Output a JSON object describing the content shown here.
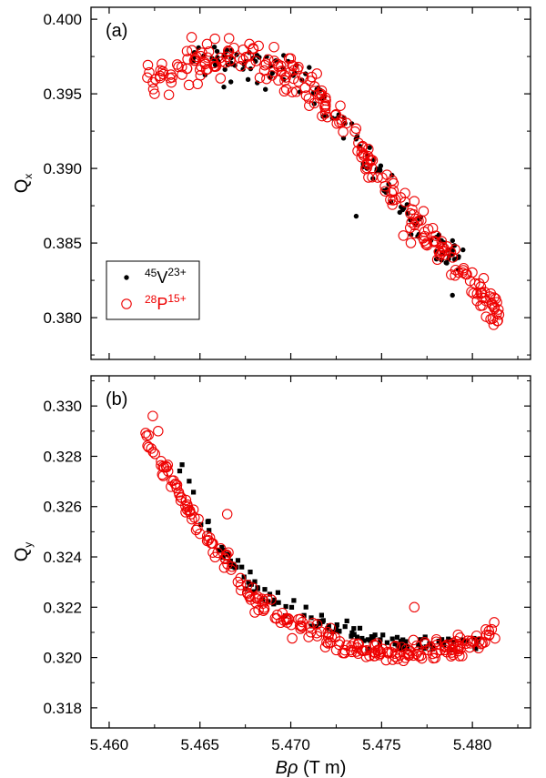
{
  "chart_data": [
    {
      "type": "scatter",
      "panel_label": "(a)",
      "ylabel": {
        "main": "Q",
        "sub": "x"
      },
      "xlim": [
        5.459,
        5.4832
      ],
      "ylim": [
        0.3772,
        0.4008
      ],
      "x_ticks": [
        "5.460",
        "5.465",
        "5.470",
        "5.475",
        "5.480"
      ],
      "y_ticks": [
        "0.380",
        "0.385",
        "0.390",
        "0.395",
        "0.400"
      ],
      "legend": {
        "placement": "lower-left",
        "entries": [
          {
            "sup": "45",
            "name": "V",
            "charge": "23+",
            "marker": "filled-circle",
            "color": "#000000"
          },
          {
            "sup": "28",
            "name": "P",
            "charge": "15+",
            "marker": "open-circle",
            "color": "#ee0000"
          }
        ]
      },
      "series": [
        {
          "marker": "filled-circle",
          "color": "#000000",
          "trend": {
            "x": [
              5.4645,
              5.4665,
              5.468,
              5.47,
              5.472,
              5.474,
              5.476,
              5.478,
              5.4795
            ],
            "y": [
              0.3972,
              0.3974,
              0.397,
              0.3962,
              0.3945,
              0.391,
              0.3875,
              0.385,
              0.3835
            ]
          },
          "x_range": [
            5.4645,
            5.4795
          ],
          "count": 130,
          "scatter": 0.0012,
          "outliers": [
            [
              5.4667,
              0.3958
            ],
            [
              5.4736,
              0.3868
            ],
            [
              5.4789,
              0.3815
            ]
          ]
        },
        {
          "marker": "open-circle",
          "color": "#ee0000",
          "trend": {
            "x": [
              5.462,
              5.4635,
              5.465,
              5.4665,
              5.468,
              5.47,
              5.472,
              5.474,
              5.476,
              5.478,
              5.48,
              5.4815
            ],
            "y": [
              0.396,
              0.3968,
              0.3974,
              0.3975,
              0.3972,
              0.3962,
              0.3945,
              0.391,
              0.3875,
              0.385,
              0.3822,
              0.38
            ]
          },
          "x_range": [
            5.462,
            5.4815
          ],
          "count": 260,
          "scatter": 0.0013,
          "outliers": [
            [
              5.4625,
              0.395
            ],
            [
              5.4628,
              0.3962
            ],
            [
              5.4762,
              0.3855
            ],
            [
              5.481,
              0.3799
            ],
            [
              5.4814,
              0.3798
            ]
          ]
        }
      ]
    },
    {
      "type": "scatter",
      "panel_label": "(b)",
      "ylabel": {
        "main": "Q",
        "sub": "y"
      },
      "xlabel": {
        "italic": "Bρ",
        "unit": " (T m)"
      },
      "xlim": [
        5.459,
        5.4832
      ],
      "ylim": [
        0.3172,
        0.3312
      ],
      "x_ticks": [
        "5.460",
        "5.465",
        "5.470",
        "5.475",
        "5.480"
      ],
      "y_ticks": [
        "0.318",
        "0.320",
        "0.322",
        "0.324",
        "0.326",
        "0.328",
        "0.330"
      ],
      "series": [
        {
          "marker": "filled-square",
          "color": "#000000",
          "trend": {
            "x": [
              5.4638,
              5.465,
              5.4665,
              5.468,
              5.47,
              5.472,
              5.474,
              5.476,
              5.478,
              5.4805
            ],
            "y": [
              0.3278,
              0.3258,
              0.324,
              0.3228,
              0.322,
              0.3213,
              0.3208,
              0.3205,
              0.3205,
              0.3208
            ]
          },
          "x_range": [
            5.4638,
            5.4805
          ],
          "count": 120,
          "scatter": 0.00035,
          "outliers": []
        },
        {
          "marker": "open-circle",
          "color": "#ee0000",
          "trend": {
            "x": [
              5.462,
              5.4635,
              5.465,
              5.4665,
              5.468,
              5.47,
              5.472,
              5.474,
              5.476,
              5.478,
              5.48,
              5.4815
            ],
            "y": [
              0.3288,
              0.327,
              0.325,
              0.3238,
              0.3222,
              0.3214,
              0.3207,
              0.3203,
              0.3202,
              0.3203,
              0.3206,
              0.321
            ]
          },
          "x_range": [
            5.462,
            5.4815
          ],
          "count": 250,
          "scatter": 0.0004,
          "outliers": [
            [
              5.4624,
              0.3296
            ],
            [
              5.4627,
              0.329
            ],
            [
              5.4665,
              0.3257
            ],
            [
              5.4768,
              0.322
            ],
            [
              5.4812,
              0.3214
            ]
          ]
        }
      ]
    }
  ]
}
